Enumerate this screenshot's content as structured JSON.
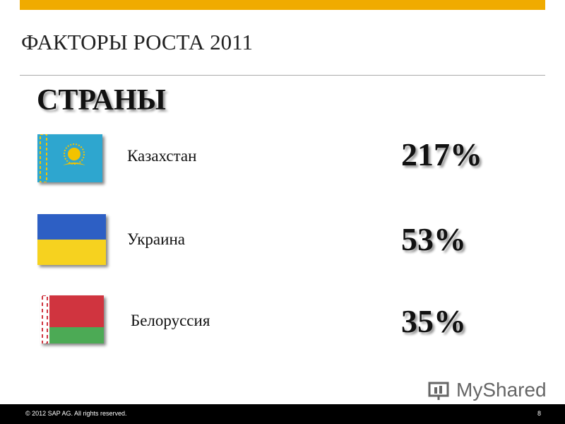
{
  "header": {
    "title": "ФАКТОРЫ РОСТА 2011"
  },
  "section": {
    "title": "СТРАНЫ"
  },
  "rows": [
    {
      "country": "Казахстан",
      "value": "217%"
    },
    {
      "country": "Украина",
      "value": "53%"
    },
    {
      "country": "Белоруссия",
      "value": "35%"
    }
  ],
  "footer": {
    "copyright": "© 2012 SAP AG. All rights reserved.",
    "page": "8"
  },
  "watermark": {
    "text": "MyShared"
  }
}
